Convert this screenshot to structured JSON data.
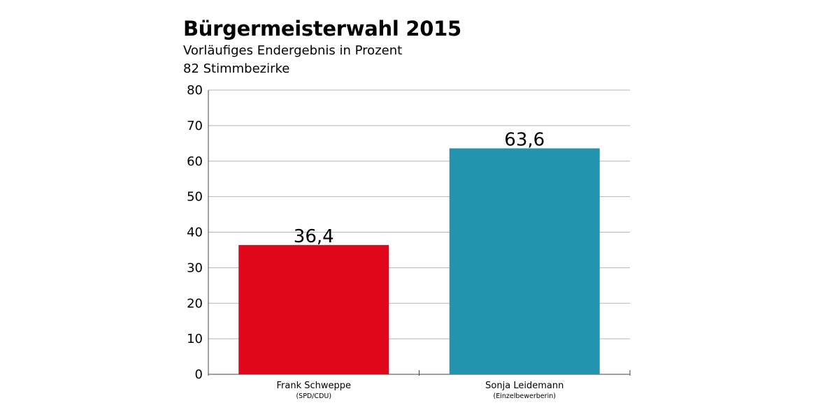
{
  "chart_data": {
    "type": "bar",
    "title": "Bürgermeisterwahl 2015",
    "subtitle": [
      "Vorläufiges Endergebnis in Prozent",
      "82 Stimmbezirke"
    ],
    "categories": [
      "Frank Schweppe",
      "Sonja Leidemann"
    ],
    "category_sublabels": [
      "(SPD/CDU)",
      "(Einzelbewerberin)"
    ],
    "values": [
      36.4,
      63.6
    ],
    "value_labels": [
      "36,4",
      "63,6"
    ],
    "colors": [
      "#e0071b",
      "#2394ae"
    ],
    "ylim": [
      0,
      80
    ],
    "yticks": [
      0,
      10,
      20,
      30,
      40,
      50,
      60,
      70,
      80
    ],
    "grid": true,
    "xlabel": "",
    "ylabel": ""
  }
}
